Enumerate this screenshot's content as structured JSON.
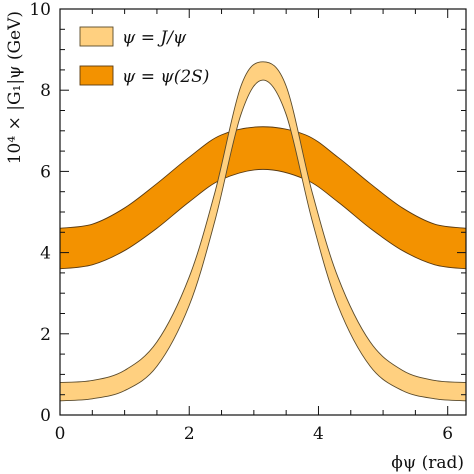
{
  "chart_data": {
    "type": "area",
    "xlabel": "ϕψ (rad)",
    "ylabel": "10⁴ × |G₁|ψ (GeV)",
    "xlim": [
      0,
      6.2832
    ],
    "ylim": [
      0,
      10
    ],
    "xticks": [
      0,
      2,
      4,
      6
    ],
    "yticks": [
      0,
      2,
      4,
      6,
      8,
      10
    ],
    "grid": false,
    "legend_position": "top-left",
    "series": [
      {
        "name": "ψ = J/ψ",
        "color": "#FFD080",
        "edge_color": "#5a4a2a",
        "x": [
          0,
          0.5,
          1.0,
          1.5,
          2.0,
          2.4,
          2.8,
          3.1416,
          3.5,
          3.9,
          4.3,
          4.8,
          5.3,
          5.8,
          6.2832
        ],
        "lower": [
          0.35,
          0.4,
          0.6,
          1.2,
          2.7,
          4.8,
          7.4,
          8.25,
          7.4,
          4.8,
          2.7,
          1.2,
          0.6,
          0.4,
          0.35
        ],
        "upper": [
          0.8,
          0.85,
          1.1,
          1.8,
          3.4,
          5.5,
          8.1,
          8.7,
          8.1,
          5.5,
          3.4,
          1.8,
          1.1,
          0.85,
          0.8
        ]
      },
      {
        "name": "ψ = ψ(2S)",
        "color": "#F39200",
        "edge_color": "#5a3a10",
        "x": [
          0,
          0.5,
          1.0,
          1.5,
          2.0,
          2.5,
          3.1416,
          3.8,
          4.3,
          4.8,
          5.3,
          5.8,
          6.2832
        ],
        "lower": [
          3.6,
          3.7,
          4.05,
          4.6,
          5.25,
          5.8,
          6.05,
          5.8,
          5.25,
          4.6,
          4.05,
          3.7,
          3.6
        ],
        "upper": [
          4.6,
          4.7,
          5.1,
          5.7,
          6.35,
          6.9,
          7.1,
          6.9,
          6.35,
          5.7,
          5.1,
          4.7,
          4.6
        ]
      }
    ]
  }
}
